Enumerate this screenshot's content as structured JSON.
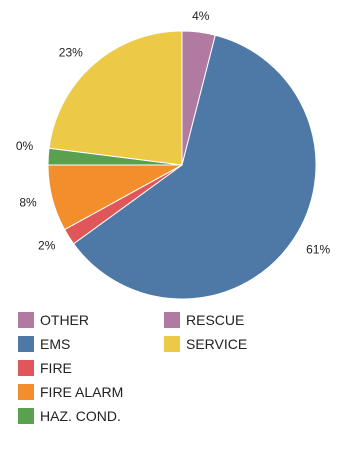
{
  "chart_data": {
    "type": "pie",
    "start_angle_deg": 0,
    "direction": "clockwise",
    "slices": [
      {
        "label": "RESCUE",
        "value": 4,
        "value_label": "4%",
        "color": "#b07aa1"
      },
      {
        "label": "EMS",
        "value": 61,
        "value_label": "61%",
        "color": "#4e79a7"
      },
      {
        "label": "FIRE",
        "value": 2,
        "value_label": "2%",
        "color": "#e15759"
      },
      {
        "label": "FIRE ALARM",
        "value": 8,
        "value_label": "8%",
        "color": "#f28e2b"
      },
      {
        "label": "HAZ. COND.",
        "value": 2,
        "value_label": "",
        "color": "#59a14f"
      },
      {
        "label": "OTHER",
        "value": 0,
        "value_label": "0%",
        "color": "#b07aa1"
      },
      {
        "label": "SERVICE",
        "value": 23,
        "value_label": "23%",
        "color": "#edc948"
      }
    ],
    "legend": {
      "position": "bottom",
      "columns": [
        [
          "OTHER",
          "EMS",
          "FIRE",
          "FIRE ALARM",
          "HAZ. COND."
        ],
        [
          "RESCUE",
          "SERVICE"
        ]
      ]
    }
  }
}
